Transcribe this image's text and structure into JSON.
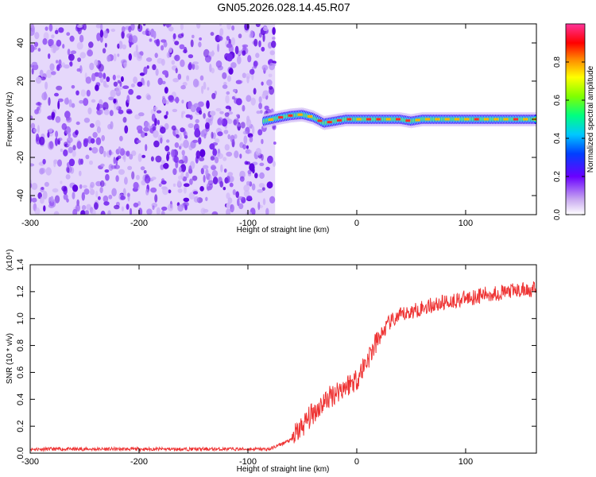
{
  "title": "GN05.2026.028.14.45.R07",
  "chart_data": [
    {
      "type": "heatmap",
      "title": "GN05.2026.028.14.45.R07",
      "xlabel": "Height of straight line (km)",
      "ylabel": "Frequency (Hz)",
      "xlim": [
        -300,
        165
      ],
      "ylim": [
        -50,
        50
      ],
      "x_ticks": [
        -300,
        -200,
        -100,
        0,
        100
      ],
      "y_ticks": [
        -40,
        -20,
        0,
        20,
        40
      ],
      "noise_region_x": [
        -300,
        -75
      ],
      "ridge": {
        "x": [
          -85,
          -70,
          -60,
          -50,
          -40,
          -30,
          -20,
          -10,
          0,
          20,
          40,
          50,
          60,
          80,
          100,
          120,
          140,
          165
        ],
        "freq_hz": [
          -1,
          1,
          2,
          2.5,
          1,
          -2,
          -1,
          0,
          0,
          0,
          0,
          -1,
          0,
          0,
          0,
          0,
          0,
          0
        ]
      },
      "colorbar": {
        "label": "Normalized spectral amplitude",
        "range": [
          0.0,
          1.0
        ],
        "ticks": [
          0.0,
          0.2,
          0.4,
          0.6,
          0.8
        ]
      }
    },
    {
      "type": "line",
      "xlabel": "Height of straight line (km)",
      "ylabel": "SNR (10 * v/v)",
      "y_multiplier": "(x10⁴)",
      "xlim": [
        -300,
        165
      ],
      "ylim": [
        0,
        1.4
      ],
      "x_ticks": [
        -300,
        -200,
        -100,
        0,
        100
      ],
      "y_ticks": [
        0.0,
        0.2,
        0.4,
        0.6,
        0.8,
        1.0,
        1.2,
        1.4
      ],
      "series": [
        {
          "color": "#ee3333",
          "x": [
            -300,
            -80,
            -60,
            -50,
            -40,
            -30,
            -20,
            -10,
            0,
            10,
            20,
            30,
            40,
            60,
            80,
            100,
            120,
            140,
            165
          ],
          "values": [
            0.03,
            0.03,
            0.1,
            0.2,
            0.3,
            0.38,
            0.45,
            0.5,
            0.55,
            0.7,
            0.85,
            0.97,
            1.02,
            1.08,
            1.12,
            1.15,
            1.18,
            1.2,
            1.22
          ]
        }
      ]
    }
  ]
}
